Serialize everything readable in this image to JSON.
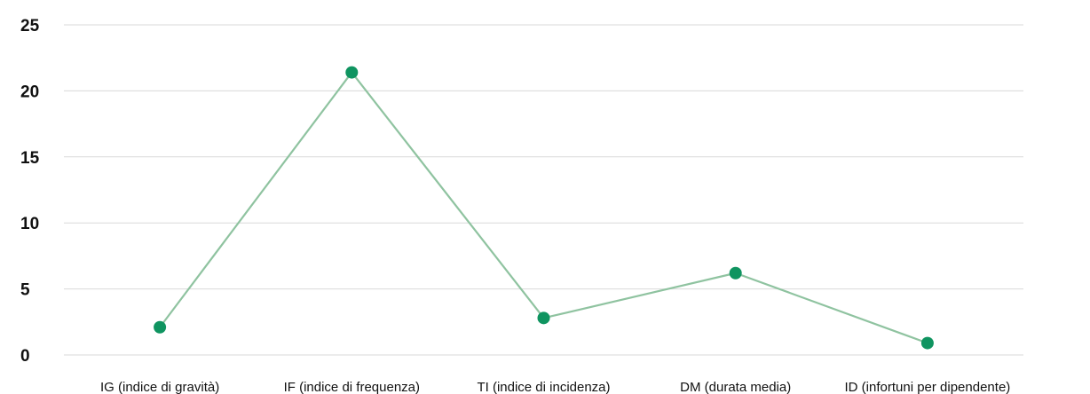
{
  "chart_data": {
    "type": "line",
    "categories": [
      "IG (indice di gravità)",
      "IF (indice di frequenza)",
      "TI (indice di incidenza)",
      "DM (durata media)",
      "ID (infortuni per dipendente)"
    ],
    "values": [
      2.1,
      21.4,
      2.8,
      6.2,
      0.9
    ],
    "ylim": [
      0,
      25
    ],
    "yticks": [
      0,
      5,
      10,
      15,
      20,
      25
    ],
    "grid": true,
    "legend": "none",
    "colors": {
      "line": "#8fc3a0",
      "marker": "#0f9460",
      "grid": "#d9d9d9",
      "text": "#111111"
    }
  }
}
